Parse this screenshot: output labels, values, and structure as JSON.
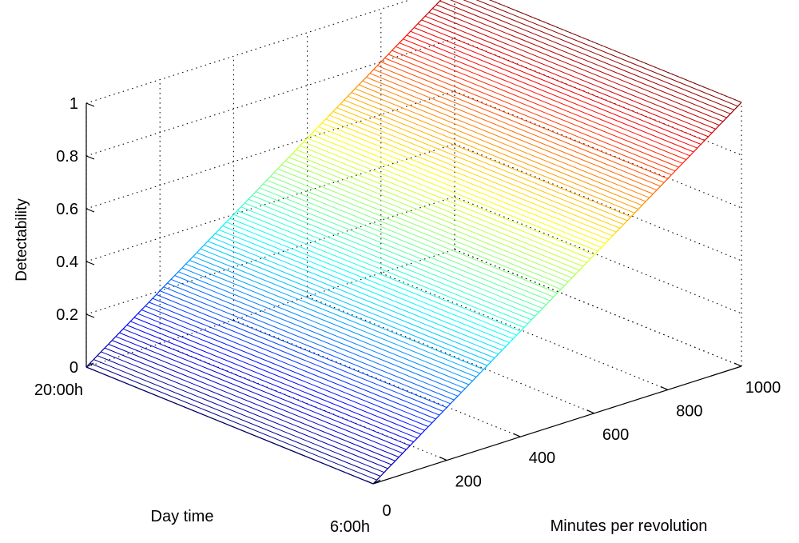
{
  "chart_data": {
    "type": "surface",
    "title": "",
    "xlabel": "Minutes per revolution",
    "ylabel": "Day time",
    "zlabel": "Detectability",
    "x_ticks": [
      "0",
      "200",
      "400",
      "600",
      "800",
      "1000"
    ],
    "x_range": [
      0,
      1000
    ],
    "y_ticks": [
      "20:00h",
      "6:00h"
    ],
    "z_ticks": [
      "0",
      "0.2",
      "0.4",
      "0.6",
      "0.8",
      "1"
    ],
    "z_range": [
      0,
      1
    ],
    "grid": true,
    "colormap": "jet",
    "surface": {
      "description_function": "Detectability = Minutes per revolution / 1000, constant along Day time",
      "x": [
        0,
        1000
      ],
      "z": [
        0,
        1
      ]
    }
  }
}
